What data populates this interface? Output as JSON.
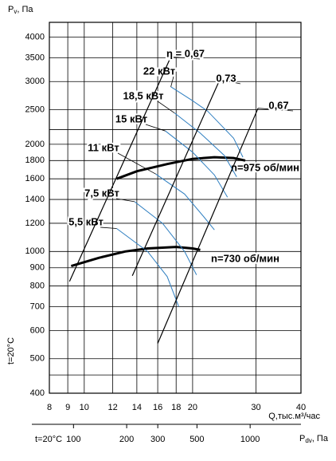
{
  "chart_data": {
    "type": "line",
    "xlog": true,
    "ylog": true,
    "grid": true,
    "ylabel": {
      "main": "P",
      "sub": "v",
      "unit": ", Па"
    },
    "xlabel": "Q,тыс.м³/час",
    "side_note": "t=20°C",
    "xlim": [
      8,
      40
    ],
    "ylim": [
      400,
      4400
    ],
    "xticks": [
      8,
      9,
      10,
      12,
      14,
      16,
      18,
      20,
      30,
      40
    ],
    "yticks": [
      400,
      500,
      600,
      700,
      800,
      900,
      1000,
      1200,
      1400,
      1600,
      1800,
      2000,
      2500,
      3000,
      3500,
      4000
    ],
    "yminor": [
      450,
      2200
    ],
    "x2": {
      "note": "t=20°C",
      "label": {
        "main": "P",
        "sub": "dv",
        "unit": ", Па"
      },
      "lim": [
        73,
        1940
      ],
      "ticks": [
        100,
        200,
        300,
        500,
        1000
      ]
    },
    "series": [
      {
        "name": "n=975 об/мин",
        "color": "#000000",
        "width": 3,
        "x": [
          12.3,
          14,
          17,
          20,
          23,
          26,
          28
        ],
        "values": [
          1600,
          1680,
          1760,
          1820,
          1840,
          1830,
          1800
        ]
      },
      {
        "name": "n=730 об/мин",
        "color": "#000000",
        "width": 3,
        "x": [
          9.2,
          11,
          13,
          15,
          18,
          20,
          21
        ],
        "values": [
          910,
          960,
          1000,
          1020,
          1030,
          1020,
          1010
        ]
      },
      {
        "name": "22 кВт",
        "color": "#2f7fc1",
        "width": 1,
        "x": [
          17.4,
          20,
          22,
          26,
          27.6
        ],
        "values": [
          2900,
          2650,
          2480,
          2080,
          1840
        ]
      },
      {
        "name": "18,5 кВт",
        "color": "#2f7fc1",
        "width": 1,
        "x": [
          17.8,
          21,
          24.5,
          26.5
        ],
        "values": [
          2450,
          2150,
          1860,
          1620
        ]
      },
      {
        "name": "15 кВт",
        "color": "#2f7fc1",
        "width": 1,
        "x": [
          16.8,
          20,
          23,
          25
        ],
        "values": [
          2180,
          1900,
          1640,
          1420
        ]
      },
      {
        "name": "11 кВт",
        "color": "#2f7fc1",
        "width": 1,
        "x": [
          15.8,
          19,
          21.5,
          23
        ],
        "values": [
          1650,
          1450,
          1250,
          1150
        ]
      },
      {
        "name": "7,5 кВт",
        "color": "#2f7fc1",
        "width": 1,
        "x": [
          13.8,
          16.5,
          19,
          20.5
        ],
        "values": [
          1380,
          1200,
          1000,
          860
        ]
      },
      {
        "name": "5,5 кВт",
        "color": "#2f7fc1",
        "width": 1,
        "x": [
          12.3,
          15,
          17,
          18.3
        ],
        "values": [
          1160,
          1000,
          850,
          700
        ]
      },
      {
        "name": "η = 0,67",
        "color": "#000000",
        "width": 1.2,
        "x": [
          9.1,
          17.4
        ],
        "values": [
          824,
          3520
        ]
      },
      {
        "name": "0,73",
        "color": "#000000",
        "width": 1.2,
        "x": [
          13.6,
          23.8
        ],
        "values": [
          855,
          3040
        ]
      },
      {
        "name": "0,67",
        "color": "#000000",
        "width": 1.2,
        "x": [
          16,
          30.4
        ],
        "values": [
          552,
          2525
        ]
      }
    ]
  }
}
